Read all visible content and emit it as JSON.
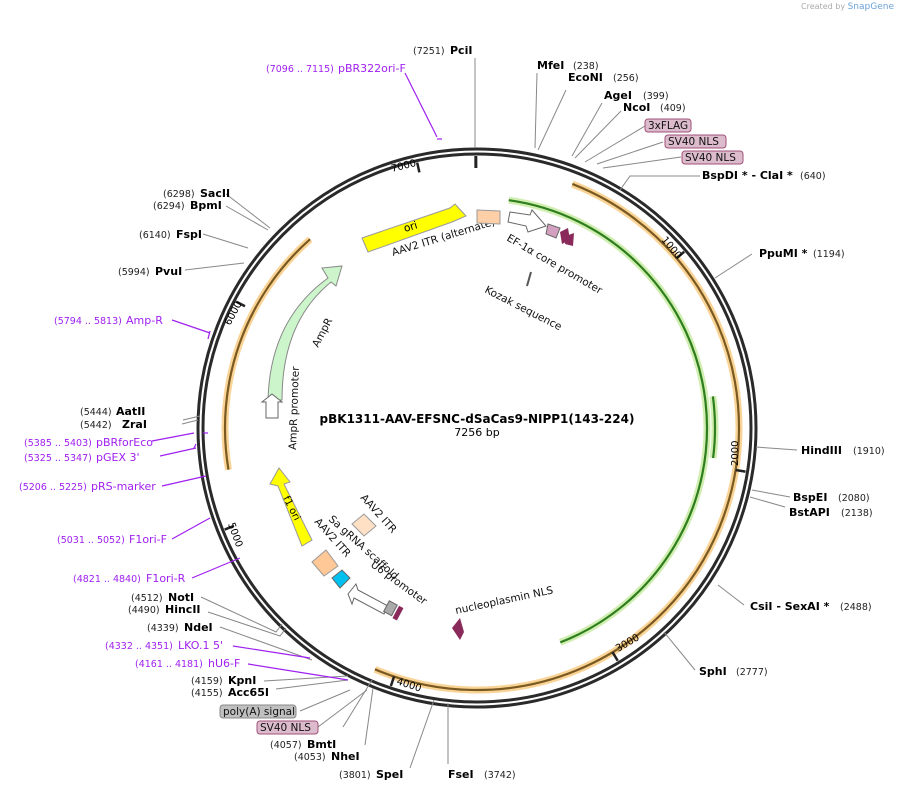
{
  "credit": {
    "prefix": "Created by",
    "brand": "SnapGene"
  },
  "plasmid": {
    "name": "pBK1311-AAV-EFSNC-dSaCas9-NIPP1(143-224)",
    "size": "7256 bp",
    "ticks": [
      "1000",
      "2000",
      "3000",
      "4000",
      "5000",
      "6000",
      "7000"
    ]
  },
  "enzymes": [
    {
      "name": "PciI",
      "pos": "(7251)"
    },
    {
      "name": "MfeI",
      "pos": "(238)"
    },
    {
      "name": "EcoNI",
      "pos": "(256)"
    },
    {
      "name": "AgeI",
      "pos": "(399)"
    },
    {
      "name": "NcoI",
      "pos": "(409)"
    },
    {
      "name": "BspDI * - ClaI *",
      "pos": "(640)"
    },
    {
      "name": "PpuMI *",
      "pos": "(1194)"
    },
    {
      "name": "HindIII",
      "pos": "(1910)"
    },
    {
      "name": "BspEI",
      "pos": "(2080)"
    },
    {
      "name": "BstAPI",
      "pos": "(2138)"
    },
    {
      "name": "CsiI - SexAI *",
      "pos": "(2488)"
    },
    {
      "name": "SphI",
      "pos": "(2777)"
    },
    {
      "name": "FseI",
      "pos": "(3742)"
    },
    {
      "name": "SpeI",
      "pos": "(3801)"
    },
    {
      "name": "NheI",
      "pos": "(4053)"
    },
    {
      "name": "BmtI",
      "pos": "(4057)"
    },
    {
      "name": "Acc65I",
      "pos": "(4155)"
    },
    {
      "name": "KpnI",
      "pos": "(4159)"
    },
    {
      "name": "NdeI",
      "pos": "(4339)"
    },
    {
      "name": "HincII",
      "pos": "(4490)"
    },
    {
      "name": "NotI",
      "pos": "(4512)"
    },
    {
      "name": "ZraI",
      "pos": "(5442)"
    },
    {
      "name": "AatII",
      "pos": "(5444)"
    },
    {
      "name": "PvuI",
      "pos": "(5994)"
    },
    {
      "name": "FspI",
      "pos": "(6140)"
    },
    {
      "name": "BpmI",
      "pos": "(6294)"
    },
    {
      "name": "SacII",
      "pos": "(6298)"
    }
  ],
  "primers": [
    {
      "name": "pBR322ori-F",
      "pos": "(7096 .. 7115)"
    },
    {
      "name": "Amp-R",
      "pos": "(5794 .. 5813)"
    },
    {
      "name": "pBRforEco",
      "pos": "(5385 .. 5403)"
    },
    {
      "name": "pGEX 3'",
      "pos": "(5325 .. 5347)"
    },
    {
      "name": "pRS-marker",
      "pos": "(5206 .. 5225)"
    },
    {
      "name": "F1ori-F",
      "pos": "(5031 .. 5052)"
    },
    {
      "name": "F1ori-R",
      "pos": "(4821 .. 4840)"
    },
    {
      "name": "LKO.1 5'",
      "pos": "(4332 .. 4351)"
    },
    {
      "name": "hU6-F",
      "pos": "(4161 .. 4181)"
    }
  ],
  "boxed": [
    "3xFLAG",
    "SV40 NLS",
    "SV40 NLS",
    "poly(A) signal",
    "SV40 NLS"
  ],
  "features": {
    "ori": "ori",
    "aav2_alt": "AAV2 ITR (alternate)",
    "ef1a": "EF-1α core promoter",
    "kozak": "Kozak sequence",
    "ampr": "AmpR",
    "ampr_prom": "AmpR promoter",
    "f1ori": "f1 ori",
    "aav2_itr1": "AAV2 ITR",
    "aav2_itr2": "AAV2 ITR",
    "sagrna": "Sa gRNA scaffold",
    "u6": "U6 promoter",
    "nucleoplasmin": "nucleoplasmin NLS"
  },
  "colors": {
    "backbone": "#2a2a2a",
    "cas9": "#f5b041",
    "green": "#7ec850",
    "primer": "#a020f0",
    "ori": "#ffff00",
    "ampr": "#ccf5cc"
  }
}
